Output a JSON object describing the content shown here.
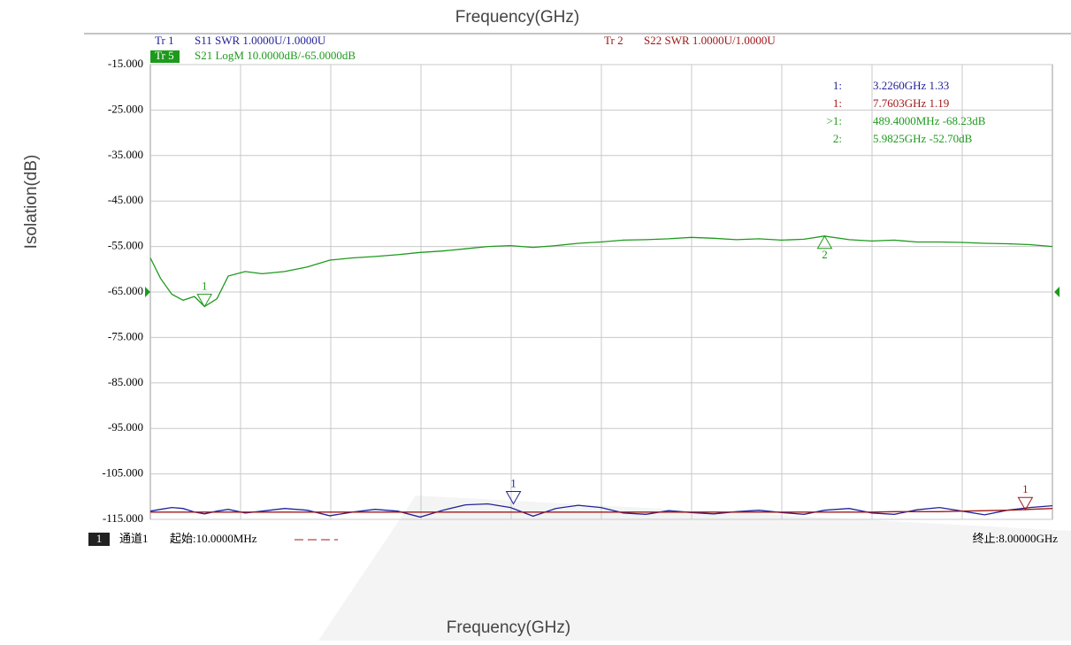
{
  "chart_data": {
    "type": "line",
    "title": "Frequency(GHz)",
    "x_label": "Frequency(GHz)",
    "y_label": "Isolation(dB)",
    "trace_headers": [
      {
        "id": "Tr 1",
        "text": "S11 SWR 1.0000U/1.0000U",
        "color": "#22229a"
      },
      {
        "id": "Tr 2",
        "text": "S22 SWR 1.0000U/1.0000U",
        "color": "#a01818"
      },
      {
        "id": "Tr 5",
        "text": "S21 LogM 10.0000dB/-65.0000dB",
        "color": "#1d9a1d"
      }
    ],
    "footer": {
      "channel_number": "1",
      "channel": "通道1",
      "start": "起始:10.0000MHz",
      "stop": "终止:8.00000GHz"
    },
    "xlim": [
      0.01,
      8
    ],
    "xgrid_divisions": 10,
    "ylim": [
      -115,
      -15
    ],
    "yticks": [
      {
        "value": -15,
        "label": "-15.000"
      },
      {
        "value": -25,
        "label": "-25.000"
      },
      {
        "value": -35,
        "label": "-35.000"
      },
      {
        "value": -45,
        "label": "-45.000"
      },
      {
        "value": -55,
        "label": "-55.000"
      },
      {
        "value": -65,
        "label": "-65.000"
      },
      {
        "value": -75,
        "label": "-75.000"
      },
      {
        "value": -85,
        "label": "-85.000"
      },
      {
        "value": -95,
        "label": "-95.000"
      },
      {
        "value": -105,
        "label": "-105.000"
      },
      {
        "value": -115,
        "label": "-115.000"
      }
    ],
    "grid": true,
    "reference": -65,
    "x": [
      0.01,
      0.1,
      0.2,
      0.3,
      0.4,
      0.49,
      0.6,
      0.7,
      0.85,
      1.0,
      1.2,
      1.4,
      1.6,
      1.8,
      2.0,
      2.2,
      2.4,
      2.6,
      2.8,
      3.0,
      3.2,
      3.4,
      3.6,
      3.8,
      4.0,
      4.2,
      4.4,
      4.6,
      4.8,
      5.0,
      5.2,
      5.4,
      5.6,
      5.8,
      5.98,
      6.2,
      6.4,
      6.6,
      6.8,
      7.0,
      7.2,
      7.4,
      7.6,
      7.8,
      8.0
    ],
    "series": [
      {
        "name": "S21",
        "color": "#1d9a1d",
        "values": [
          -57.5,
          -62,
          -65.5,
          -66.8,
          -66,
          -68.2,
          -66.5,
          -61.5,
          -60.5,
          -61,
          -60.5,
          -59.5,
          -58,
          -57.5,
          -57.2,
          -56.8,
          -56.3,
          -56,
          -55.5,
          -55,
          -54.8,
          -55.2,
          -54.8,
          -54.3,
          -54,
          -53.6,
          -53.5,
          -53.3,
          -53,
          -53.2,
          -53.5,
          -53.3,
          -53.6,
          -53.4,
          -52.7,
          -53.5,
          -53.8,
          -53.6,
          -54,
          -54,
          -54.1,
          -54.3,
          -54.4,
          -54.6,
          -55
        ]
      },
      {
        "name": "S11",
        "color": "#22229a",
        "values": [
          -113.2,
          -112.8,
          -112.4,
          -112.6,
          -113.4,
          -113.8,
          -113.2,
          -112.8,
          -113.6,
          -113.2,
          -112.6,
          -113,
          -114.2,
          -113.4,
          -112.8,
          -113.2,
          -114.5,
          -113,
          -111.8,
          -111.6,
          -112.4,
          -114.3,
          -112.6,
          -111.9,
          -112.4,
          -113.6,
          -113.9,
          -113.1,
          -113.5,
          -113.8,
          -113.3,
          -113,
          -113.5,
          -113.9,
          -113,
          -112.6,
          -113.6,
          -113.9,
          -112.9,
          -112.4,
          -113.2,
          -114,
          -113,
          -112.4,
          -112
        ]
      },
      {
        "name": "S22",
        "color": "#a01818",
        "values": [
          -113.4,
          -113.4,
          -113.4,
          -113.4,
          -113.4,
          -113.4,
          -113.4,
          -113.4,
          -113.4,
          -113.4,
          -113.4,
          -113.4,
          -113.4,
          -113.4,
          -113.4,
          -113.4,
          -113.4,
          -113.4,
          -113.4,
          -113.4,
          -113.4,
          -113.4,
          -113.4,
          -113.4,
          -113.4,
          -113.4,
          -113.4,
          -113.4,
          -113.4,
          -113.4,
          -113.4,
          -113.4,
          -113.4,
          -113.4,
          -113.4,
          -113.4,
          -113.4,
          -113.3,
          -113.3,
          -113.3,
          -113.2,
          -113.1,
          -113,
          -112.8,
          -112.6
        ]
      }
    ],
    "markers": [
      {
        "label": "1:",
        "readout": "3.2260GHz 1.33",
        "number": "1",
        "x": 3.226,
        "y": -111.6,
        "color": "#22229a",
        "symbol": "down"
      },
      {
        "label": "1:",
        "readout": "7.7603GHz 1.19",
        "number": "1",
        "x": 7.7603,
        "y": -112.9,
        "color": "#a01818",
        "symbol": "down"
      },
      {
        "label": ">1:",
        "readout": "489.4000MHz -68.23dB",
        "number": "1",
        "x": 0.4894,
        "y": -68.23,
        "color": "#1d9a1d",
        "symbol": "down"
      },
      {
        "label": "2:",
        "readout": "5.9825GHz -52.70dB",
        "number": "2",
        "x": 5.9825,
        "y": -52.7,
        "color": "#1d9a1d",
        "symbol": "up"
      }
    ]
  }
}
